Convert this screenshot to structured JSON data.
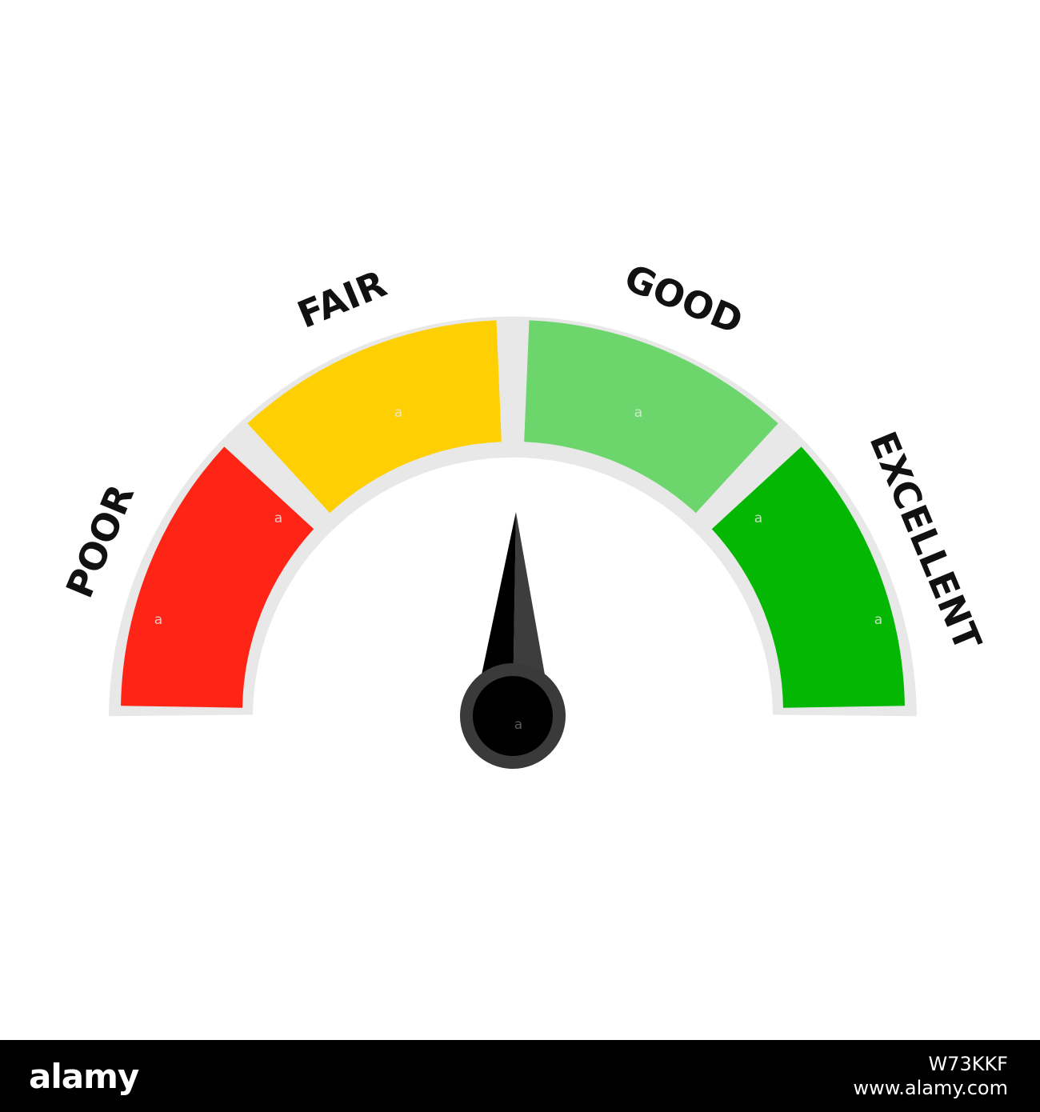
{
  "gauge": {
    "value_fraction": 0.505,
    "segments": [
      {
        "label": "POOR",
        "color": "#ff2516"
      },
      {
        "label": "FAIR",
        "color": "#fed003"
      },
      {
        "label": "GOOD",
        "color": "#6cd66c"
      },
      {
        "label": "EXCELLENT",
        "color": "#03b703"
      }
    ],
    "track_color": "#e8e8e8",
    "needle_color": "#000000",
    "needle_shade_color": "#3d3d3d",
    "hub_outer_color": "#3a3a3a",
    "hub_inner_color": "#000000",
    "watermark_glyph": "a"
  },
  "stock_bar": {
    "logo": "alamy",
    "image_id": "W73KKF",
    "site": "www.alamy.com"
  }
}
